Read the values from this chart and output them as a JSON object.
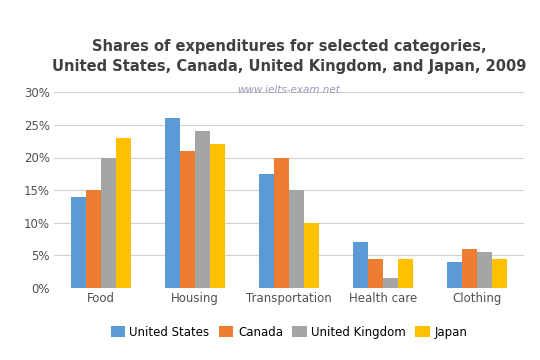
{
  "title": "Shares of expenditures for selected categories,\nUnited States, Canada, United Kingdom, and Japan, 2009",
  "watermark": "www.ielts-exam.net",
  "categories": [
    "Food",
    "Housing",
    "Transportation",
    "Health care",
    "Clothing"
  ],
  "countries": [
    "United States",
    "Canada",
    "United Kingdom",
    "Japan"
  ],
  "colors": [
    "#5B9BD5",
    "#ED7D31",
    "#A5A5A5",
    "#FFC000"
  ],
  "values": {
    "United States": [
      14,
      26,
      17.5,
      7,
      4
    ],
    "Canada": [
      15,
      21,
      20,
      4.5,
      6
    ],
    "United Kingdom": [
      20,
      24,
      15,
      1.5,
      5.5
    ],
    "Japan": [
      23,
      22,
      10,
      4.5,
      4.5
    ]
  },
  "ylim": [
    0,
    32
  ],
  "yticks": [
    0,
    5,
    10,
    15,
    20,
    25,
    30
  ],
  "ytick_labels": [
    "0%",
    "5%",
    "10%",
    "15%",
    "20%",
    "25%",
    "30%"
  ],
  "title_fontsize": 10.5,
  "legend_fontsize": 8.5,
  "tick_fontsize": 8.5,
  "bar_width": 0.16,
  "background_color": "#ffffff",
  "grid_color": "#d0d0d0",
  "title_color": "#404040",
  "watermark_color": "#9999bb"
}
